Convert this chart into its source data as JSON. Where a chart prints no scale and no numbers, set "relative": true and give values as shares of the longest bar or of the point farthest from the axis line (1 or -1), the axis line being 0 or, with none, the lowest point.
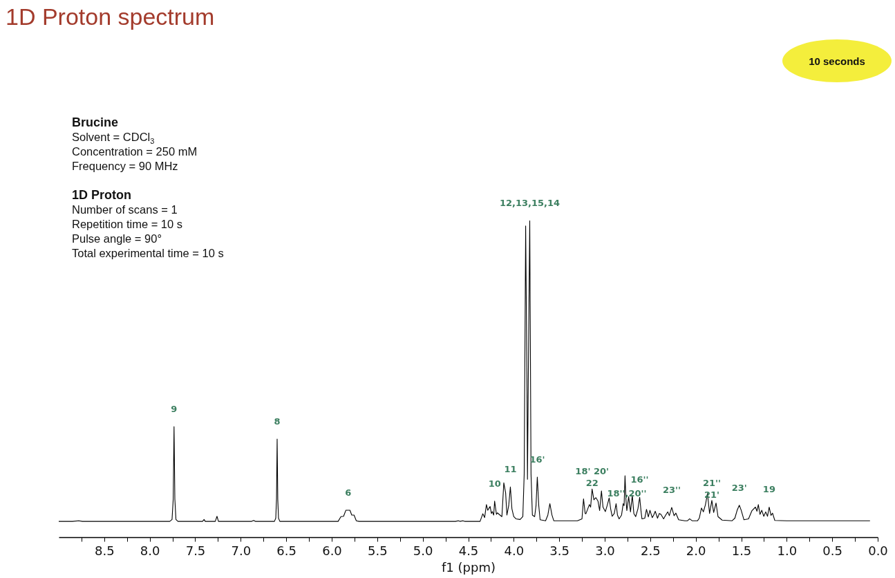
{
  "chart_data": {
    "type": "line",
    "title": "1D Proton spectrum",
    "xlabel": "f1 (ppm)",
    "relative": true,
    "xlim": [
      9.0,
      0.0
    ],
    "xticks": [
      {
        "value": 8.75,
        "label": null
      },
      8.5,
      {
        "value": 8.25,
        "label": null
      },
      {
        "value": 8,
        "label": "8.0"
      },
      {
        "value": 7.75,
        "label": null
      },
      7.5,
      {
        "value": 7.25,
        "label": null
      },
      {
        "value": 7,
        "label": "7.0"
      },
      {
        "value": 6.75,
        "label": null
      },
      6.5,
      {
        "value": 6.25,
        "label": null
      },
      {
        "value": 6,
        "label": "6.0"
      },
      {
        "value": 5.75,
        "label": null
      },
      5.5,
      {
        "value": 5.25,
        "label": null
      },
      {
        "value": 5,
        "label": "5.0"
      },
      {
        "value": 4.75,
        "label": null
      },
      4.5,
      {
        "value": 4.25,
        "label": null
      },
      {
        "value": 4,
        "label": "4.0"
      },
      {
        "value": 3.75,
        "label": null
      },
      3.5,
      {
        "value": 3.25,
        "label": null
      },
      {
        "value": 3,
        "label": "3.0"
      },
      {
        "value": 2.75,
        "label": null
      },
      2.5,
      {
        "value": 2.25,
        "label": null
      },
      {
        "value": 2,
        "label": "2.0"
      },
      {
        "value": 1.75,
        "label": null
      },
      1.5,
      {
        "value": 1.25,
        "label": null
      },
      {
        "value": 1,
        "label": "1.0"
      },
      {
        "value": 0.75,
        "label": null
      },
      0.5,
      {
        "value": 0.25,
        "label": null
      },
      {
        "value": 0,
        "label": "0.0"
      }
    ],
    "series": [
      {
        "color": "#000000",
        "x": [
          9.0,
          8.85,
          8.78,
          8.74,
          7.78,
          7.755,
          7.742,
          7.733,
          7.724,
          7.712,
          7.69,
          7.42,
          7.403,
          7.39,
          7.28,
          7.261,
          7.245,
          6.88,
          6.858,
          6.84,
          6.63,
          6.615,
          6.607,
          6.6,
          6.593,
          6.585,
          6.57,
          5.93,
          5.899,
          5.87,
          5.845,
          5.8,
          5.78,
          5.755,
          5.73,
          5.7,
          4.64,
          4.61,
          4.59,
          4.56,
          4.54,
          4.37,
          4.34,
          4.32,
          4.3,
          4.285,
          4.26,
          4.245,
          4.235,
          4.22,
          4.21,
          4.19,
          4.18,
          4.16,
          4.13,
          4.109,
          4.089,
          4.075,
          4.055,
          4.037,
          4.02,
          4.0,
          3.975,
          3.93,
          3.9,
          3.885,
          3.869,
          3.855,
          3.849,
          3.84,
          3.824,
          3.81,
          3.795,
          3.77,
          3.755,
          3.741,
          3.725,
          3.71,
          3.65,
          3.625,
          3.603,
          3.58,
          3.56,
          3.3,
          3.25,
          3.233,
          3.215,
          3.207,
          3.169,
          3.155,
          3.139,
          3.119,
          3.098,
          3.074,
          3.056,
          3.036,
          3.019,
          2.993,
          2.973,
          2.951,
          2.935,
          2.918,
          2.895,
          2.875,
          2.86,
          2.842,
          2.815,
          2.797,
          2.787,
          2.777,
          2.767,
          2.757,
          2.737,
          2.717,
          2.697,
          2.68,
          2.66,
          2.635,
          2.616,
          2.6,
          2.591,
          2.56,
          2.541,
          2.521,
          2.503,
          2.478,
          2.462,
          2.445,
          2.42,
          2.4,
          2.382,
          2.353,
          2.33,
          2.307,
          2.29,
          2.264,
          2.238,
          2.218,
          2.188,
          2.12,
          2.09,
          2.067,
          2.04,
          1.98,
          1.961,
          1.937,
          1.916,
          1.893,
          1.871,
          1.848,
          1.823,
          1.803,
          1.777,
          1.755,
          1.71,
          1.6,
          1.57,
          1.545,
          1.521,
          1.5,
          1.47,
          1.42,
          1.382,
          1.344,
          1.327,
          1.312,
          1.294,
          1.274,
          1.252,
          1.231,
          1.211,
          1.193,
          1.173,
          1.156,
          1.131,
          1.0,
          0.085
        ],
        "values": [
          0.05,
          0.05,
          0.052,
          0.05,
          0.05,
          0.056,
          0.12,
          0.349,
          0.12,
          0.056,
          0.05,
          0.05,
          0.056,
          0.05,
          0.05,
          0.066,
          0.05,
          0.05,
          0.053,
          0.05,
          0.05,
          0.06,
          0.12,
          0.31,
          0.12,
          0.06,
          0.05,
          0.05,
          0.065,
          0.066,
          0.085,
          0.085,
          0.07,
          0.07,
          0.052,
          0.05,
          0.05,
          0.052,
          0.05,
          0.052,
          0.05,
          0.05,
          0.074,
          0.062,
          0.103,
          0.085,
          0.097,
          0.075,
          0.081,
          0.07,
          0.114,
          0.072,
          0.077,
          0.072,
          0.065,
          0.172,
          0.14,
          0.07,
          0.1,
          0.159,
          0.09,
          0.065,
          0.058,
          0.056,
          0.065,
          0.2,
          0.983,
          0.5,
          0.183,
          0.5,
          1.0,
          0.2,
          0.07,
          0.065,
          0.1,
          0.19,
          0.1,
          0.055,
          0.052,
          0.07,
          0.106,
          0.07,
          0.052,
          0.052,
          0.058,
          0.121,
          0.075,
          0.074,
          0.103,
          0.095,
          0.152,
          0.118,
          0.125,
          0.114,
          0.084,
          0.146,
          0.095,
          0.081,
          0.1,
          0.124,
          0.09,
          0.066,
          0.075,
          0.106,
          0.07,
          0.058,
          0.07,
          0.106,
          0.1,
          0.194,
          0.12,
          0.084,
          0.128,
          0.08,
          0.132,
          0.075,
          0.065,
          0.09,
          0.126,
          0.08,
          0.058,
          0.06,
          0.088,
          0.064,
          0.085,
          0.062,
          0.07,
          0.082,
          0.06,
          0.075,
          0.072,
          0.058,
          0.07,
          0.08,
          0.068,
          0.094,
          0.068,
          0.076,
          0.055,
          0.052,
          0.052,
          0.058,
          0.052,
          0.052,
          0.06,
          0.092,
          0.08,
          0.103,
          0.138,
          0.075,
          0.116,
          0.078,
          0.108,
          0.065,
          0.054,
          0.052,
          0.06,
          0.085,
          0.101,
          0.085,
          0.055,
          0.058,
          0.084,
          0.095,
          0.082,
          0.103,
          0.072,
          0.085,
          0.066,
          0.08,
          0.066,
          0.095,
          0.069,
          0.076,
          0.053,
          0.052,
          0.052
        ]
      }
    ],
    "annotations": [
      "Brucine",
      "Solvent = CDCl$_{3}$",
      "Concentration = 250 mM",
      "Frequency = 90 MHz",
      "1D Proton",
      "Number of scans = 1",
      "Repetition time = 10 s",
      "Pulse angle = 90°",
      "Total experimental time = 10 s",
      "10 seconds",
      {
        "text": "9",
        "x": 7.733,
        "y": 0.349
      },
      {
        "text": "8",
        "x": 6.6,
        "y": 0.31
      },
      {
        "text": "6",
        "x": 5.82,
        "y": 0.085
      },
      {
        "text": "10",
        "x": 4.21,
        "y": 0.114
      },
      {
        "text": "11",
        "x": 4.037,
        "y": 0.159
      },
      {
        "text": "12,13,15,14",
        "x": 3.824,
        "y": 1.0
      },
      {
        "text": "16'",
        "x": 3.741,
        "y": 0.19
      },
      {
        "text": "18' 20'\n22",
        "x": 3.139,
        "y": 0.152
      },
      {
        "text": "18'',20''",
        "x": 2.757,
        "y": 0.084
      },
      {
        "text": "16''",
        "x": 2.616,
        "y": 0.126
      },
      {
        "text": "23''",
        "x": 2.264,
        "y": 0.094
      },
      {
        "text": "21''\n21'",
        "x": 1.823,
        "y": 0.116
      },
      {
        "text": "23'",
        "x": 1.521,
        "y": 0.101
      },
      {
        "text": "19",
        "x": 1.193,
        "y": 0.095
      }
    ]
  }
}
